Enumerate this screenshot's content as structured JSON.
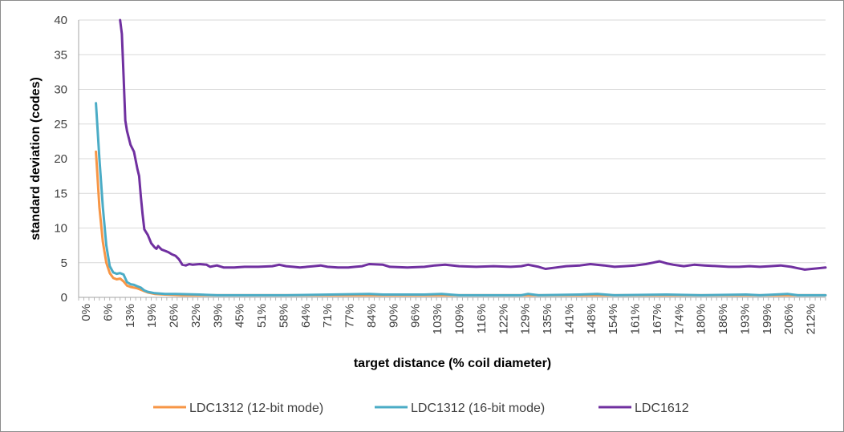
{
  "chart_data": {
    "type": "line",
    "title": "",
    "xlabel": "target distance (% coil diameter)",
    "ylabel": "standard deviation (codes)",
    "ylim": [
      0,
      40
    ],
    "yticks": [
      "0",
      "5",
      "10",
      "15",
      "20",
      "25",
      "30",
      "35",
      "40"
    ],
    "xlim": [
      0,
      216
    ],
    "xticks": [
      "0%",
      "6%",
      "13%",
      "19%",
      "26%",
      "32%",
      "39%",
      "45%",
      "51%",
      "58%",
      "64%",
      "71%",
      "77%",
      "84%",
      "90%",
      "96%",
      "103%",
      "109%",
      "116%",
      "122%",
      "129%",
      "135%",
      "141%",
      "148%",
      "154%",
      "161%",
      "167%",
      "174%",
      "180%",
      "186%",
      "193%",
      "199%",
      "206%",
      "212%"
    ],
    "grid": "horizontal",
    "legend_position": "bottom",
    "series": [
      {
        "name": "LDC1312 (12-bit mode)",
        "color": "#f79646",
        "points": [
          [
            5,
            21
          ],
          [
            6,
            13
          ],
          [
            7,
            8
          ],
          [
            8,
            5
          ],
          [
            9,
            3.5
          ],
          [
            10,
            2.8
          ],
          [
            11,
            2.6
          ],
          [
            12,
            2.7
          ],
          [
            13,
            2.3
          ],
          [
            14,
            1.7
          ],
          [
            15,
            1.5
          ],
          [
            16,
            1.4
          ],
          [
            17,
            1.3
          ],
          [
            18,
            1.1
          ],
          [
            19,
            0.9
          ],
          [
            20,
            0.7
          ],
          [
            22,
            0.5
          ],
          [
            25,
            0.4
          ],
          [
            30,
            0.3
          ],
          [
            40,
            0.3
          ],
          [
            80,
            0.3
          ],
          [
            120,
            0.3
          ],
          [
            160,
            0.3
          ],
          [
            216,
            0.3
          ]
        ]
      },
      {
        "name": "LDC1312 (16-bit mode)",
        "color": "#4bacc6",
        "points": [
          [
            5,
            28
          ],
          [
            6,
            20
          ],
          [
            7,
            13
          ],
          [
            8,
            7.5
          ],
          [
            9,
            4.5
          ],
          [
            10,
            3.6
          ],
          [
            11,
            3.4
          ],
          [
            12,
            3.5
          ],
          [
            13,
            3.3
          ],
          [
            14,
            2.2
          ],
          [
            15,
            1.9
          ],
          [
            16,
            1.8
          ],
          [
            17,
            1.6
          ],
          [
            18,
            1.4
          ],
          [
            19,
            1.0
          ],
          [
            20,
            0.8
          ],
          [
            22,
            0.6
          ],
          [
            25,
            0.5
          ],
          [
            28,
            0.5
          ],
          [
            35,
            0.4
          ],
          [
            40,
            0.3
          ],
          [
            60,
            0.3
          ],
          [
            84,
            0.5
          ],
          [
            88,
            0.4
          ],
          [
            100,
            0.4
          ],
          [
            105,
            0.5
          ],
          [
            110,
            0.3
          ],
          [
            128,
            0.3
          ],
          [
            130,
            0.5
          ],
          [
            133,
            0.3
          ],
          [
            145,
            0.4
          ],
          [
            150,
            0.5
          ],
          [
            155,
            0.3
          ],
          [
            170,
            0.4
          ],
          [
            180,
            0.3
          ],
          [
            193,
            0.4
          ],
          [
            197,
            0.3
          ],
          [
            205,
            0.5
          ],
          [
            208,
            0.3
          ],
          [
            216,
            0.3
          ]
        ]
      },
      {
        "name": "LDC1612",
        "color": "#7030a0",
        "points": [
          [
            12,
            40
          ],
          [
            12.5,
            38
          ],
          [
            13,
            32
          ],
          [
            13.5,
            25.5
          ],
          [
            14,
            24
          ],
          [
            15,
            22
          ],
          [
            16,
            21
          ],
          [
            17,
            18.5
          ],
          [
            17.5,
            17.5
          ],
          [
            18,
            14.5
          ],
          [
            18.5,
            12
          ],
          [
            19,
            9.8
          ],
          [
            20,
            9
          ],
          [
            21,
            7.8
          ],
          [
            22,
            7.2
          ],
          [
            22.5,
            7.0
          ],
          [
            23,
            7.4
          ],
          [
            24,
            6.9
          ],
          [
            25,
            6.7
          ],
          [
            26,
            6.5
          ],
          [
            27,
            6.2
          ],
          [
            28,
            6.0
          ],
          [
            29,
            5.5
          ],
          [
            30,
            4.7
          ],
          [
            31,
            4.6
          ],
          [
            32,
            4.8
          ],
          [
            33,
            4.7
          ],
          [
            35,
            4.8
          ],
          [
            37,
            4.7
          ],
          [
            38,
            4.4
          ],
          [
            40,
            4.6
          ],
          [
            42,
            4.3
          ],
          [
            45,
            4.3
          ],
          [
            48,
            4.4
          ],
          [
            52,
            4.4
          ],
          [
            56,
            4.5
          ],
          [
            58,
            4.7
          ],
          [
            60,
            4.5
          ],
          [
            62,
            4.4
          ],
          [
            64,
            4.3
          ],
          [
            66,
            4.4
          ],
          [
            68,
            4.5
          ],
          [
            70,
            4.6
          ],
          [
            72,
            4.4
          ],
          [
            75,
            4.3
          ],
          [
            78,
            4.3
          ],
          [
            80,
            4.4
          ],
          [
            82,
            4.5
          ],
          [
            84,
            4.8
          ],
          [
            88,
            4.7
          ],
          [
            90,
            4.4
          ],
          [
            95,
            4.3
          ],
          [
            100,
            4.4
          ],
          [
            103,
            4.6
          ],
          [
            106,
            4.7
          ],
          [
            110,
            4.5
          ],
          [
            115,
            4.4
          ],
          [
            120,
            4.5
          ],
          [
            125,
            4.4
          ],
          [
            128,
            4.5
          ],
          [
            130,
            4.7
          ],
          [
            133,
            4.4
          ],
          [
            135,
            4.1
          ],
          [
            138,
            4.3
          ],
          [
            141,
            4.5
          ],
          [
            145,
            4.6
          ],
          [
            148,
            4.8
          ],
          [
            152,
            4.6
          ],
          [
            155,
            4.4
          ],
          [
            158,
            4.5
          ],
          [
            161,
            4.6
          ],
          [
            164,
            4.8
          ],
          [
            166,
            5.0
          ],
          [
            168,
            5.2
          ],
          [
            170,
            4.9
          ],
          [
            172,
            4.7
          ],
          [
            175,
            4.5
          ],
          [
            178,
            4.7
          ],
          [
            181,
            4.6
          ],
          [
            185,
            4.5
          ],
          [
            188,
            4.4
          ],
          [
            191,
            4.4
          ],
          [
            194,
            4.5
          ],
          [
            197,
            4.4
          ],
          [
            200,
            4.5
          ],
          [
            203,
            4.6
          ],
          [
            206,
            4.4
          ],
          [
            208,
            4.2
          ],
          [
            210,
            4.0
          ],
          [
            212,
            4.1
          ],
          [
            216,
            4.3
          ]
        ]
      }
    ]
  }
}
